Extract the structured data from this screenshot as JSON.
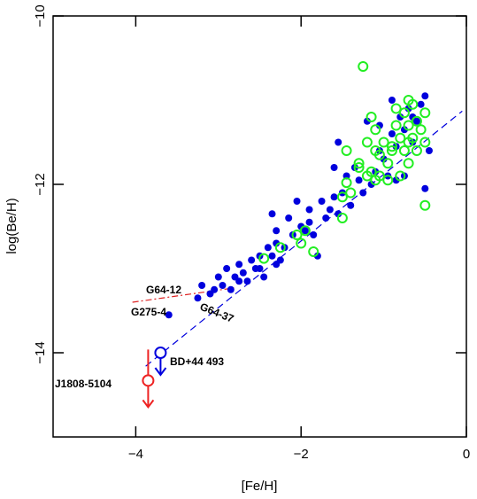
{
  "chart_data": {
    "type": "scatter",
    "xlabel": "[Fe/H]",
    "ylabel": "log(Be/H)",
    "xlim": [
      -5,
      0
    ],
    "ylim": [
      -15,
      -10
    ],
    "xticks": [
      {
        "value": -4,
        "label": "−4"
      },
      {
        "value": -2,
        "label": "−2"
      },
      {
        "value": 0,
        "label": "0"
      }
    ],
    "yticks": [
      {
        "value": -14,
        "label": "−14"
      },
      {
        "value": -12,
        "label": "−12"
      },
      {
        "value": -10,
        "label": "−10"
      }
    ],
    "series": [
      {
        "color": "#0000dd",
        "marker": "filled",
        "x": [
          -3.6,
          -3.25,
          -3.2,
          -3.05,
          -3.0,
          -2.95,
          -2.9,
          -2.85,
          -2.8,
          -2.75,
          -2.7,
          -2.65,
          -2.6,
          -2.55,
          -2.5,
          -2.45,
          -2.4,
          -2.35,
          -2.3,
          -2.25,
          -2.2,
          -2.35,
          -2.3,
          -2.15,
          -2.1,
          -2.0,
          -1.95,
          -1.9,
          -1.85,
          -1.8,
          -1.75,
          -1.7,
          -1.65,
          -1.6,
          -1.55,
          -1.5,
          -1.45,
          -1.4,
          -1.35,
          -1.3,
          -1.25,
          -1.2,
          -1.15,
          -1.1,
          -1.05,
          -1.0,
          -0.95,
          -0.9,
          -0.85,
          -0.8,
          -0.75,
          -0.7,
          -0.65,
          -0.6,
          -0.55,
          -0.5,
          -0.75,
          -0.45,
          -0.5,
          -0.85,
          -2.75,
          -3.1,
          -2.5,
          -1.9,
          -1.6,
          -1.55,
          -1.05,
          -0.9,
          -0.65,
          -2.3,
          -2.05
        ],
        "values": [
          -13.55,
          -13.35,
          -13.2,
          -13.25,
          -13.1,
          -13.2,
          -13.0,
          -13.25,
          -13.1,
          -12.95,
          -13.05,
          -13.15,
          -12.9,
          -13.0,
          -12.85,
          -13.1,
          -12.75,
          -12.85,
          -12.7,
          -12.9,
          -12.75,
          -12.35,
          -12.55,
          -12.4,
          -12.6,
          -12.5,
          -12.55,
          -12.3,
          -12.6,
          -12.85,
          -12.2,
          -12.4,
          -12.3,
          -12.15,
          -12.35,
          -12.1,
          -11.9,
          -12.25,
          -11.8,
          -11.95,
          -12.1,
          -11.25,
          -12.0,
          -11.85,
          -11.6,
          -11.7,
          -11.9,
          -11.4,
          -11.55,
          -11.2,
          -11.35,
          -11.1,
          -11.5,
          -11.25,
          -11.05,
          -10.95,
          -11.9,
          -11.6,
          -12.05,
          -11.95,
          -13.15,
          -13.3,
          -13.0,
          -12.45,
          -11.8,
          -11.5,
          -11.3,
          -11.0,
          -11.2,
          -12.95,
          -12.2
        ]
      },
      {
        "color": "#22ee22",
        "marker": "open",
        "x": [
          -1.25,
          -2.45,
          -2.25,
          -2.05,
          -2.0,
          -1.85,
          -1.95,
          -1.5,
          -1.5,
          -1.45,
          -1.4,
          -1.45,
          -1.3,
          -1.2,
          -1.15,
          -1.1,
          -1.05,
          -1.1,
          -1.15,
          -1.1,
          -1.0,
          -0.95,
          -0.9,
          -0.85,
          -0.8,
          -0.75,
          -0.7,
          -0.7,
          -0.65,
          -0.6,
          -0.7,
          -0.75,
          -0.8,
          -0.85,
          -0.65,
          -0.55,
          -0.5,
          -0.5,
          -0.5,
          -0.6,
          -0.9,
          -1.05,
          -1.2,
          -1.3,
          -0.95,
          -0.7
        ],
        "values": [
          -10.6,
          -12.88,
          -12.75,
          -12.6,
          -12.7,
          -12.8,
          -12.55,
          -12.4,
          -12.15,
          -11.98,
          -12.1,
          -11.6,
          -11.8,
          -11.5,
          -11.85,
          -11.95,
          -11.9,
          -11.6,
          -11.2,
          -11.35,
          -11.5,
          -11.75,
          -11.6,
          -11.3,
          -11.45,
          -11.15,
          -11.0,
          -11.3,
          -11.45,
          -11.6,
          -11.75,
          -11.6,
          -11.9,
          -11.1,
          -11.05,
          -11.35,
          -11.5,
          -11.15,
          -12.25,
          -11.25,
          -11.55,
          -11.65,
          -11.9,
          -11.75,
          -11.95,
          -11.5
        ]
      },
      {
        "name": "J1808-5104",
        "color": "#ee2222",
        "marker": "open",
        "upper_limit": true,
        "x": [
          -3.85
        ],
        "values": [
          -14.33
        ]
      },
      {
        "name": "BD+44 493",
        "color": "#0000dd",
        "marker": "open",
        "upper_limit": true,
        "x": [
          -3.7
        ],
        "values": [
          -14.0
        ]
      }
    ],
    "lines": [
      {
        "color": "#0000dd",
        "style": "dashed",
        "x": [
          -3.88,
          -0.05
        ],
        "values": [
          -14.16,
          -11.13
        ]
      },
      {
        "color": "#dd2222",
        "style": "dashdot",
        "x": [
          -4.04,
          -2.81
        ],
        "values": [
          -13.4,
          -13.23
        ]
      }
    ],
    "annotations": [
      "G64-12",
      "G275-4",
      "G64-37"
    ]
  }
}
